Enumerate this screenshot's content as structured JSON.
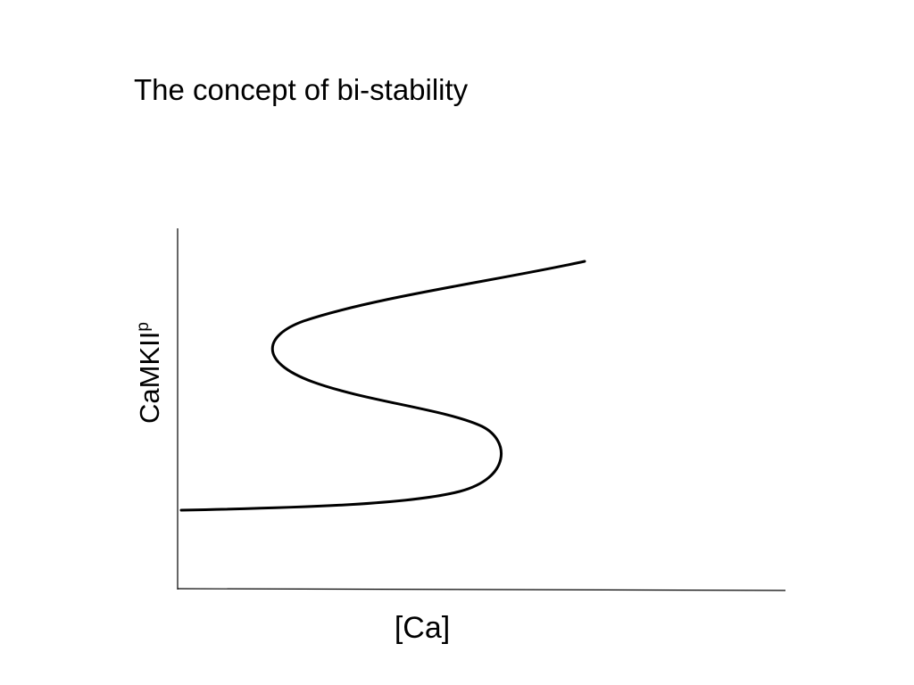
{
  "title": "The concept of bi-stability",
  "y_axis": {
    "label": "CaMKII",
    "superscript": "p"
  },
  "x_axis": {
    "label": "[Ca]"
  }
}
